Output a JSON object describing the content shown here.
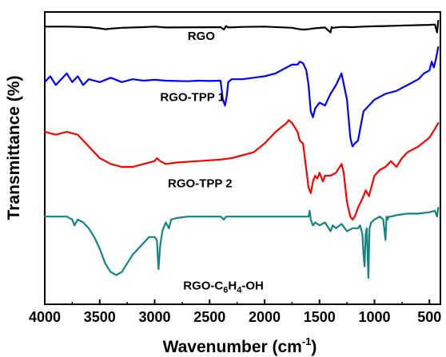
{
  "chart_data": {
    "type": "line",
    "title": "",
    "xlabel": "Wavenumber (cm",
    "xlabel_sup": "-1",
    "xlabel_close": ")",
    "ylabel": "Transmittance (%)",
    "xlim": [
      4000,
      400
    ],
    "x_reversed": true,
    "y_ticks_shown": false,
    "x_ticks": [
      "4000",
      "3500",
      "3000",
      "2500",
      "2000",
      "1500",
      "1000",
      "500"
    ],
    "x_tick_values": [
      4000,
      3500,
      3000,
      2500,
      2000,
      1500,
      1000,
      500
    ],
    "ylim": [
      0,
      100
    ],
    "series": [
      {
        "name": "RGO",
        "color": "#000000",
        "x": [
          4000,
          3800,
          3600,
          3500,
          3450,
          3400,
          3300,
          3100,
          3000,
          2900,
          2400,
          2370,
          2350,
          2330,
          2200,
          2000,
          1750,
          1700,
          1650,
          1600,
          1550,
          1450,
          1400,
          1390,
          1380,
          1300,
          1200,
          1100,
          1000,
          900,
          800,
          700,
          600,
          500,
          450,
          430,
          420
        ],
        "values": [
          95,
          95,
          94.8,
          94.4,
          94.1,
          94.3,
          94.6,
          94.8,
          95,
          94.7,
          94.8,
          94,
          95.2,
          94.7,
          94.9,
          95,
          94.6,
          94.2,
          94,
          94.1,
          94.4,
          94.7,
          93,
          94.8,
          94.6,
          94.9,
          94.8,
          95,
          95.1,
          95.2,
          95.3,
          95.4,
          95.5,
          95.6,
          95.7,
          93,
          97
        ]
      },
      {
        "name": "RGO-TPP 1",
        "color": "#0000ff",
        "x": [
          4000,
          3950,
          3900,
          3850,
          3800,
          3750,
          3700,
          3650,
          3600,
          3500,
          3400,
          3300,
          3200,
          3100,
          3000,
          2900,
          2800,
          2700,
          2600,
          2500,
          2400,
          2380,
          2360,
          2345,
          2330,
          2300,
          2200,
          2100,
          2000,
          1900,
          1850,
          1800,
          1750,
          1700,
          1680,
          1650,
          1620,
          1600,
          1580,
          1560,
          1540,
          1500,
          1450,
          1400,
          1350,
          1300,
          1250,
          1220,
          1200,
          1180,
          1150,
          1120,
          1100,
          1050,
          1000,
          900,
          800,
          700,
          600,
          550,
          500,
          480,
          460,
          440,
          430,
          420
        ],
        "values": [
          76,
          78,
          75,
          77,
          79,
          76,
          78,
          75,
          77,
          76,
          77.5,
          76,
          77,
          76.5,
          76.8,
          76.5,
          76.4,
          76.3,
          76.5,
          76.4,
          76.5,
          70,
          68,
          71,
          76,
          77,
          77,
          77.5,
          78,
          79,
          80,
          81,
          82,
          82,
          83,
          82.5,
          80,
          75,
          66,
          64,
          67,
          69,
          68,
          72,
          75,
          79,
          70,
          57,
          54,
          55,
          56,
          62,
          66,
          68,
          70,
          72,
          73,
          75,
          77,
          79,
          80,
          83,
          81,
          84,
          86,
          88
        ]
      },
      {
        "name": "RGO-TPP 2",
        "color": "#ff0000",
        "x": [
          4000,
          3900,
          3800,
          3700,
          3600,
          3500,
          3400,
          3300,
          3200,
          3100,
          3000,
          2980,
          2950,
          2900,
          2800,
          2600,
          2400,
          2300,
          2100,
          2000,
          1900,
          1800,
          1780,
          1750,
          1700,
          1680,
          1650,
          1620,
          1600,
          1580,
          1560,
          1540,
          1520,
          1500,
          1470,
          1450,
          1400,
          1350,
          1300,
          1280,
          1250,
          1220,
          1200,
          1180,
          1150,
          1100,
          1080,
          1050,
          1000,
          950,
          900,
          850,
          800,
          750,
          700,
          600,
          500,
          450,
          420
        ],
        "values": [
          59,
          58,
          59,
          58,
          54,
          50,
          48,
          47,
          47,
          48,
          49,
          50,
          49,
          48,
          48.5,
          49,
          49.5,
          50,
          52,
          55,
          59,
          62,
          63,
          62,
          59,
          56,
          55,
          46,
          40,
          38,
          42,
          44,
          43,
          45,
          42,
          44,
          44,
          45,
          48,
          45,
          35,
          30,
          29,
          30,
          33,
          37,
          39,
          37,
          44,
          46,
          47,
          49,
          47,
          50,
          52,
          54,
          57,
          60,
          62
        ]
      },
      {
        "name": "RGO-C6H4-OH",
        "color": "#128484",
        "x": [
          4000,
          3900,
          3800,
          3750,
          3730,
          3700,
          3650,
          3600,
          3550,
          3500,
          3450,
          3400,
          3350,
          3300,
          3250,
          3200,
          3150,
          3100,
          3050,
          3000,
          2980,
          2965,
          2950,
          2930,
          2900,
          2870,
          2850,
          2800,
          2700,
          2500,
          2400,
          2370,
          2350,
          2300,
          2100,
          1900,
          1700,
          1650,
          1600,
          1590,
          1580,
          1560,
          1540,
          1500,
          1450,
          1400,
          1380,
          1350,
          1300,
          1250,
          1200,
          1150,
          1130,
          1110,
          1100,
          1090,
          1080,
          1070,
          1055,
          1045,
          1030,
          1000,
          950,
          920,
          900,
          890,
          880,
          870,
          850,
          800,
          700,
          600,
          500,
          450,
          430,
          420
        ],
        "values": [
          30,
          30,
          30,
          29,
          27,
          29,
          28,
          26,
          23,
          19,
          14,
          11,
          10,
          11,
          14,
          17,
          19,
          21,
          23,
          23,
          22,
          12,
          20,
          25,
          28,
          26,
          29,
          29.5,
          30,
          30,
          30,
          29,
          30,
          30,
          30,
          30,
          30,
          30,
          30,
          32,
          29,
          27,
          28,
          27,
          28,
          25,
          27,
          26,
          27.5,
          25,
          26,
          26,
          27,
          24,
          17,
          13,
          24,
          26,
          9,
          26,
          28,
          29,
          30,
          29,
          22,
          30,
          29,
          30,
          30,
          30.5,
          31,
          31,
          31.5,
          32,
          30,
          33
        ]
      }
    ],
    "annotations": [
      {
        "text": "RGO",
        "series": 0,
        "x": 2700,
        "y": 90.5
      },
      {
        "text": "RGO-TPP 1",
        "series": 1,
        "x": 2950,
        "y": 69.5
      },
      {
        "text": "RGO-TPP 2",
        "series": 2,
        "x": 2880,
        "y": 40
      },
      {
        "text_main": "RGO-C",
        "text_sub": "6",
        "text_tail": "H",
        "text_sub2": "4",
        "text_end": "-OH",
        "series": 3,
        "x": 2740,
        "y": 5
      }
    ]
  }
}
